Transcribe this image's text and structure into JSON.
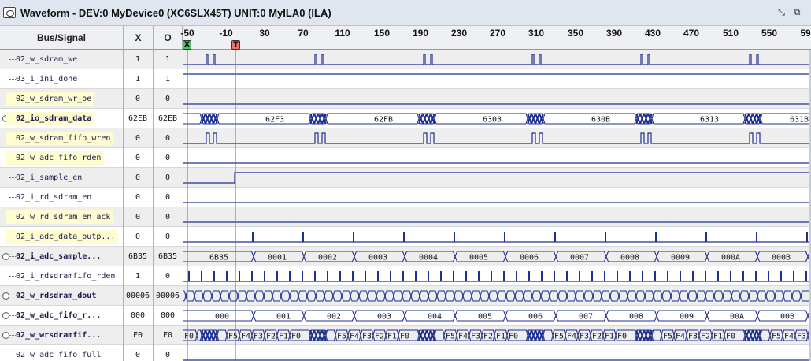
{
  "window": {
    "title": "Waveform - DEV:0 MyDevice0 (XC6SLX45T) UNIT:0 MyILA0 (ILA)"
  },
  "headers": {
    "bus_signal": "Bus/Signal",
    "x": "X",
    "o": "O"
  },
  "ruler": {
    "ticks": [
      "-50",
      "-10",
      "30",
      "70",
      "110",
      "150",
      "190",
      "230",
      "270",
      "310",
      "350",
      "390",
      "430",
      "470",
      "510",
      "550",
      "59"
    ],
    "x_marker": "X",
    "o_marker": "T"
  },
  "signals": [
    {
      "name": "02_w_sdram_we",
      "x": "1",
      "o": "1",
      "bus": false,
      "hl": false
    },
    {
      "name": "03_i_ini_done",
      "x": "1",
      "o": "1",
      "bus": false,
      "hl": false
    },
    {
      "name": "02_w_sdram_wr_oe",
      "x": "0",
      "o": "0",
      "bus": false,
      "hl": true
    },
    {
      "name": "02_io_sdram_data",
      "x": "62EB",
      "o": "62EB",
      "bus": true,
      "hl": true
    },
    {
      "name": "02_w_sdram_fifo_wren",
      "x": "0",
      "o": "0",
      "bus": false,
      "hl": true
    },
    {
      "name": "02_w_adc_fifo_rden",
      "x": "0",
      "o": "0",
      "bus": false,
      "hl": true
    },
    {
      "name": "02_i_sample_en",
      "x": "0",
      "o": "0",
      "bus": false,
      "hl": false
    },
    {
      "name": "02_i_rd_sdram_en",
      "x": "0",
      "o": "0",
      "bus": false,
      "hl": false
    },
    {
      "name": "02_w_rd_sdram_en_ack",
      "x": "0",
      "o": "0",
      "bus": false,
      "hl": true
    },
    {
      "name": "02_i_adc_data_outp...",
      "x": "0",
      "o": "0",
      "bus": false,
      "hl": true
    },
    {
      "name": "02_i_adc_sample...",
      "x": "6B35",
      "o": "6B35",
      "bus": true,
      "hl": false
    },
    {
      "name": "02_i_rdsdramfifo_rden",
      "x": "1",
      "o": "0",
      "bus": false,
      "hl": false
    },
    {
      "name": "02_w_rdsdram_dout",
      "x": "00006",
      "o": "00006",
      "bus": true,
      "hl": false
    },
    {
      "name": "02_w_adc_fifo_r...",
      "x": "000",
      "o": "000",
      "bus": true,
      "hl": false
    },
    {
      "name": "02_w_wrsdramfif...",
      "x": "F0",
      "o": "F0",
      "bus": true,
      "hl": false
    },
    {
      "name": "02_w_adc_fifo_full",
      "x": "0",
      "o": "0",
      "bus": false,
      "hl": false
    }
  ],
  "bus_labels": {
    "io_sdram_data": [
      "62F3",
      "62FB",
      "6303",
      "630B",
      "6313",
      "631B"
    ],
    "adc_sample": [
      "6B35",
      "0001",
      "0002",
      "0003",
      "0004",
      "0005",
      "0006",
      "0007",
      "0008",
      "0009",
      "000A",
      "000B"
    ],
    "adc_fifo_r": [
      "000",
      "001",
      "002",
      "003",
      "004",
      "005",
      "006",
      "007",
      "008",
      "009",
      "00A",
      "00B"
    ],
    "wrsdramfif_left": "F0",
    "wrsdramfif_seq": [
      "F5",
      "F4",
      "F3",
      "F2",
      "F1",
      "F0"
    ]
  },
  "colors": {
    "wave": "#1f2f8f",
    "o_cursor": "#e03a3a",
    "x_cursor": "#2a9a3a"
  }
}
